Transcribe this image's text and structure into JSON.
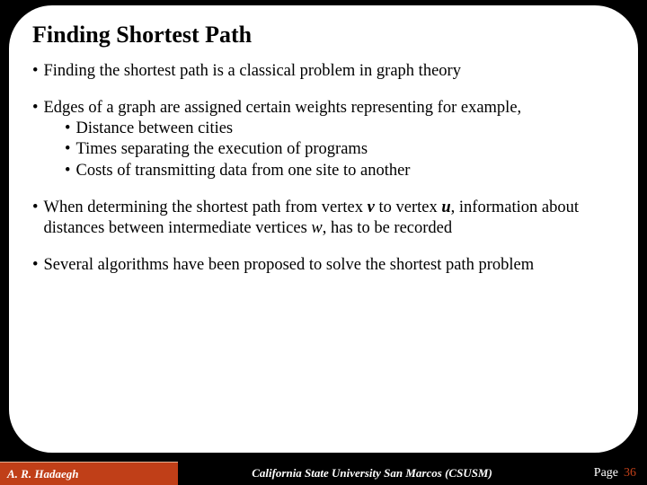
{
  "title": "Finding Shortest Path",
  "bullets": {
    "b1": "Finding the shortest path is a classical problem in graph theory",
    "b2": "Edges of a graph are assigned certain weights representing for example,",
    "b2_sub": {
      "s1": "Distance between cities",
      "s2": "Times separating the execution of programs",
      "s3": "Costs of transmitting data from one site to another"
    },
    "b3_pre": "When determining the shortest path from vertex ",
    "b3_v": "v",
    "b3_mid1": " to vertex ",
    "b3_u": "u",
    "b3_mid2": ", information about distances between intermediate vertices ",
    "b3_w": "w",
    "b3_post": ", has to be recorded",
    "b4": "Several algorithms have been proposed to solve the shortest path problem"
  },
  "footer": {
    "author": "A. R. Hadaegh",
    "institution": "California State University San Marcos (CSUSM)",
    "page_label": "Page",
    "page_number": "36"
  },
  "colors": {
    "background": "#000000",
    "panel": "#ffffff",
    "accent": "#c03f18"
  }
}
